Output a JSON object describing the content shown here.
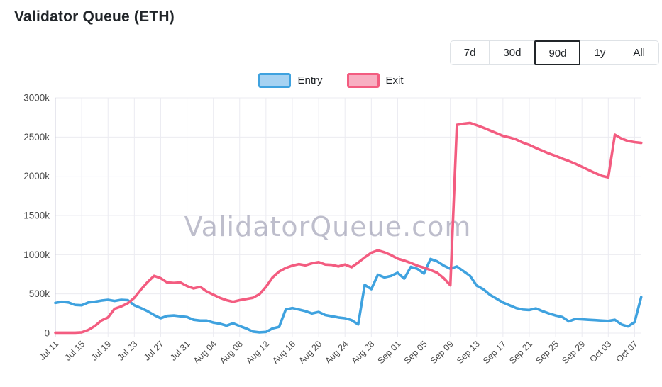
{
  "header": {
    "title": "Validator Queue (ETH)"
  },
  "controls": {
    "range_buttons": [
      {
        "label": "7d",
        "selected": false
      },
      {
        "label": "30d",
        "selected": false
      },
      {
        "label": "90d",
        "selected": true
      },
      {
        "label": "1y",
        "selected": false
      },
      {
        "label": "All",
        "selected": false
      }
    ]
  },
  "legend": {
    "items": [
      {
        "label": "Entry",
        "line_color": "#3fa2df",
        "fill_color": "#a6d2f2"
      },
      {
        "label": "Exit",
        "line_color": "#f35c80",
        "fill_color": "#f8afc2"
      }
    ]
  },
  "watermark": "ValidatorQueue.com",
  "chart_data": {
    "type": "line",
    "title": "Validator Queue (ETH)",
    "unit": "thousand validators (k)",
    "ylim": [
      0,
      3000
    ],
    "grid": true,
    "legend_position": "top-center",
    "grid_color": "#ebebf1",
    "axis_color": "#cfcfdd",
    "y_ticks": [
      0,
      500,
      1000,
      1500,
      2000,
      2500,
      3000
    ],
    "y_tick_labels": [
      "0",
      "500k",
      "1000k",
      "1500k",
      "2000k",
      "2500k",
      "3000k"
    ],
    "x_tick_labels": [
      "Jul 11",
      "Jul 15",
      "Jul 19",
      "Jul 23",
      "Jul 27",
      "Jul 31",
      "Aug 04",
      "Aug 08",
      "Aug 12",
      "Aug 16",
      "Aug 20",
      "Aug 24",
      "Aug 28",
      "Sep 01",
      "Sep 05",
      "Sep 09",
      "Sep 13",
      "Sep 17",
      "Sep 21",
      "Sep 25",
      "Sep 29",
      "Oct 03",
      "Oct 07"
    ],
    "x": [
      "Jul 11",
      "Jul 12",
      "Jul 13",
      "Jul 14",
      "Jul 15",
      "Jul 16",
      "Jul 17",
      "Jul 18",
      "Jul 19",
      "Jul 20",
      "Jul 21",
      "Jul 22",
      "Jul 23",
      "Jul 24",
      "Jul 25",
      "Jul 26",
      "Jul 27",
      "Jul 28",
      "Jul 29",
      "Jul 30",
      "Jul 31",
      "Aug 01",
      "Aug 02",
      "Aug 03",
      "Aug 04",
      "Aug 05",
      "Aug 06",
      "Aug 07",
      "Aug 08",
      "Aug 09",
      "Aug 10",
      "Aug 11",
      "Aug 12",
      "Aug 13",
      "Aug 14",
      "Aug 15",
      "Aug 16",
      "Aug 17",
      "Aug 18",
      "Aug 19",
      "Aug 20",
      "Aug 21",
      "Aug 22",
      "Aug 23",
      "Aug 24",
      "Aug 25",
      "Aug 26",
      "Aug 27",
      "Aug 28",
      "Aug 29",
      "Aug 30",
      "Aug 31",
      "Sep 01",
      "Sep 02",
      "Sep 03",
      "Sep 04",
      "Sep 05",
      "Sep 06",
      "Sep 07",
      "Sep 08",
      "Sep 09",
      "Sep 10",
      "Sep 11",
      "Sep 12",
      "Sep 13",
      "Sep 14",
      "Sep 15",
      "Sep 16",
      "Sep 17",
      "Sep 18",
      "Sep 19",
      "Sep 20",
      "Sep 21",
      "Sep 22",
      "Sep 23",
      "Sep 24",
      "Sep 25",
      "Sep 26",
      "Sep 27",
      "Sep 28",
      "Sep 29",
      "Sep 30",
      "Oct 01",
      "Oct 02",
      "Oct 03",
      "Oct 04",
      "Oct 05",
      "Oct 06",
      "Oct 07",
      "Oct 08"
    ],
    "series": [
      {
        "name": "Entry",
        "color": "#3fa2df",
        "values": [
          385,
          400,
          390,
          360,
          355,
          390,
          400,
          415,
          425,
          410,
          425,
          420,
          355,
          320,
          280,
          230,
          190,
          220,
          225,
          215,
          205,
          170,
          160,
          160,
          135,
          120,
          95,
          125,
          90,
          60,
          20,
          10,
          15,
          60,
          80,
          300,
          320,
          300,
          280,
          250,
          270,
          230,
          215,
          200,
          190,
          165,
          110,
          615,
          560,
          745,
          710,
          730,
          770,
          695,
          845,
          820,
          760,
          945,
          915,
          860,
          820,
          850,
          790,
          730,
          605,
          560,
          490,
          440,
          390,
          355,
          320,
          300,
          295,
          315,
          280,
          250,
          225,
          205,
          150,
          180,
          175,
          170,
          165,
          160,
          155,
          170,
          110,
          85,
          140,
          460
        ]
      },
      {
        "name": "Exit",
        "color": "#f35c80",
        "values": [
          5,
          5,
          5,
          5,
          10,
          40,
          90,
          160,
          200,
          310,
          340,
          380,
          450,
          555,
          650,
          730,
          700,
          645,
          640,
          645,
          600,
          570,
          590,
          530,
          490,
          450,
          420,
          400,
          420,
          435,
          450,
          495,
          590,
          710,
          785,
          830,
          860,
          880,
          865,
          890,
          905,
          875,
          870,
          850,
          875,
          840,
          900,
          965,
          1025,
          1055,
          1030,
          995,
          950,
          925,
          895,
          860,
          835,
          805,
          770,
          700,
          610,
          2655,
          2670,
          2680,
          2650,
          2620,
          2585,
          2550,
          2515,
          2495,
          2470,
          2430,
          2400,
          2360,
          2325,
          2290,
          2260,
          2225,
          2195,
          2160,
          2120,
          2080,
          2040,
          2005,
          1985,
          2530,
          2480,
          2450,
          2435,
          2425
        ]
      }
    ]
  }
}
